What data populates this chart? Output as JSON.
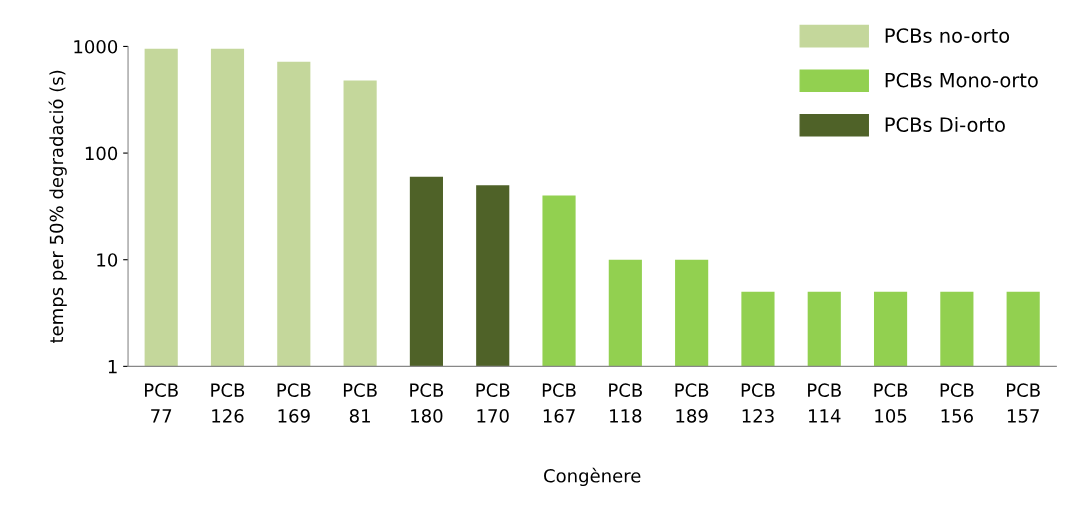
{
  "chart_data": {
    "type": "bar",
    "xlabel": "Congènere",
    "ylabel": "temps per 50% degradació (s)",
    "categories": [
      "PCB 77",
      "PCB 126",
      "PCB 169",
      "PCB 81",
      "PCB 180",
      "PCB 170",
      "PCB 167",
      "PCB 118",
      "PCB 189",
      "PCB 123",
      "PCB 114",
      "PCB 105",
      "PCB 156",
      "PCB 157"
    ],
    "series": [
      {
        "name": "PCBs no-orto",
        "color": "#c4d79b",
        "values": [
          950,
          950,
          720,
          480,
          null,
          null,
          null,
          null,
          null,
          null,
          null,
          null,
          null,
          null
        ]
      },
      {
        "name": "PCBs Mono-orto",
        "color": "#92d050",
        "values": [
          null,
          null,
          null,
          null,
          null,
          null,
          40,
          10,
          10,
          5,
          5,
          5,
          5,
          5
        ]
      },
      {
        "name": "PCBs Di-orto",
        "color": "#4f6228",
        "values": [
          null,
          null,
          null,
          null,
          60,
          50,
          null,
          null,
          null,
          null,
          null,
          null,
          null,
          null
        ]
      }
    ],
    "log": "y",
    "ylim": [
      1,
      1000
    ],
    "yticks": [
      1,
      10,
      100,
      1000
    ],
    "grid": false,
    "legend": "top right"
  }
}
